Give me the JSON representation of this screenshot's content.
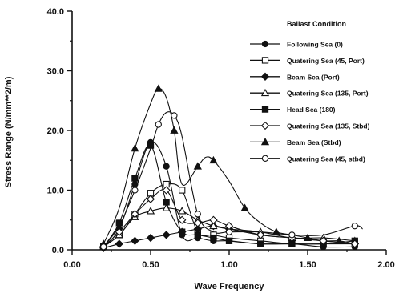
{
  "chart_data": {
    "type": "line",
    "xlabel": "Wave Frequency",
    "ylabel": "Stress Range (N/mm**2/m)",
    "xlim": [
      0.0,
      2.0
    ],
    "ylim": [
      0.0,
      40.0
    ],
    "xticks": [
      0.0,
      0.5,
      1.0,
      1.5,
      2.0
    ],
    "xtick_labels": [
      "0.00",
      "0.50",
      "1.00",
      "1.50",
      "2.00"
    ],
    "yticks": [
      0.0,
      10.0,
      20.0,
      30.0,
      40.0
    ],
    "ytick_labels": [
      "0.0",
      "10.0",
      "20.0",
      "30.0",
      "40.0"
    ],
    "grid": false,
    "legend_title": "Ballast Condition",
    "legend_position": "right",
    "series": [
      {
        "name": "Following Sea (0)",
        "marker": "circle-filled",
        "x": [
          0.2,
          0.3,
          0.4,
          0.5,
          0.6,
          0.7,
          0.8,
          0.9,
          1.0,
          1.2,
          1.4,
          1.6,
          1.8
        ],
        "y": [
          0.5,
          3.5,
          11.0,
          18.0,
          14.0,
          2.5,
          2.0,
          1.5,
          1.5,
          1.0,
          1.0,
          0.5,
          0.5
        ]
      },
      {
        "name": "Quatering Sea (45, Port)",
        "marker": "square-open",
        "x": [
          0.2,
          0.3,
          0.4,
          0.5,
          0.6,
          0.7,
          0.8,
          0.9,
          1.0,
          1.2,
          1.4,
          1.6,
          1.8
        ],
        "y": [
          0.5,
          2.5,
          6.0,
          9.5,
          11.0,
          10.0,
          3.0,
          2.5,
          2.0,
          1.5,
          1.0,
          1.0,
          1.0
        ]
      },
      {
        "name": "Beam Sea (Port)",
        "marker": "diamond-filled",
        "x": [
          0.2,
          0.3,
          0.4,
          0.5,
          0.6,
          0.7,
          0.8,
          0.9,
          1.0,
          1.2,
          1.4,
          1.6,
          1.8
        ],
        "y": [
          0.3,
          1.0,
          1.5,
          2.0,
          2.5,
          3.0,
          3.5,
          4.0,
          3.5,
          2.5,
          2.0,
          1.5,
          1.0
        ]
      },
      {
        "name": "Quatering Sea (135, Port)",
        "marker": "triangle-open",
        "x": [
          0.2,
          0.3,
          0.4,
          0.5,
          0.6,
          0.7,
          0.8,
          0.9,
          1.0,
          1.2,
          1.4,
          1.6,
          1.8
        ],
        "y": [
          0.5,
          2.5,
          5.5,
          6.5,
          7.0,
          6.5,
          5.0,
          4.0,
          3.5,
          3.0,
          2.0,
          2.0,
          1.5
        ]
      },
      {
        "name": "Head Sea (180)",
        "marker": "square-filled",
        "x": [
          0.2,
          0.3,
          0.4,
          0.5,
          0.6,
          0.7,
          0.8,
          0.9,
          1.0,
          1.2,
          1.4,
          1.6,
          1.8
        ],
        "y": [
          0.5,
          4.5,
          12.0,
          17.5,
          8.0,
          3.0,
          2.5,
          2.0,
          1.5,
          1.0,
          1.0,
          1.0,
          1.5
        ]
      },
      {
        "name": "Quatering Sea (135, Stbd)",
        "marker": "diamond-open",
        "x": [
          0.2,
          0.3,
          0.4,
          0.5,
          0.6,
          0.7,
          0.8,
          0.9,
          1.0,
          1.2,
          1.4,
          1.6,
          1.8
        ],
        "y": [
          0.5,
          3.0,
          6.0,
          8.5,
          10.0,
          5.0,
          4.5,
          5.0,
          4.0,
          2.5,
          2.0,
          1.5,
          1.0
        ]
      },
      {
        "name": "Beam Sea (Stbd)",
        "marker": "triangle-filled",
        "x": [
          0.2,
          0.3,
          0.4,
          0.5,
          0.55,
          0.6,
          0.65,
          0.7,
          0.8,
          0.85,
          0.9,
          1.0,
          1.1,
          1.2,
          1.3,
          1.4,
          1.5,
          1.6,
          1.7,
          1.8
        ],
        "y": [
          1.0,
          7.0,
          17.0,
          24.5,
          27.0,
          25.5,
          20.0,
          11.0,
          14.0,
          15.5,
          15.0,
          11.5,
          7.0,
          4.5,
          3.0,
          2.5,
          2.0,
          1.5,
          1.5,
          1.0
        ]
      },
      {
        "name": "Quatering Sea (45, stbd)",
        "marker": "circle-open",
        "x": [
          0.2,
          0.3,
          0.4,
          0.5,
          0.55,
          0.6,
          0.65,
          0.7,
          0.8,
          0.9,
          1.0,
          1.2,
          1.4,
          1.6,
          1.8,
          1.85
        ],
        "y": [
          0.5,
          4.0,
          10.0,
          17.0,
          21.0,
          23.0,
          22.5,
          19.0,
          6.0,
          3.0,
          3.0,
          3.0,
          2.5,
          2.5,
          4.0,
          3.5
        ]
      }
    ]
  }
}
